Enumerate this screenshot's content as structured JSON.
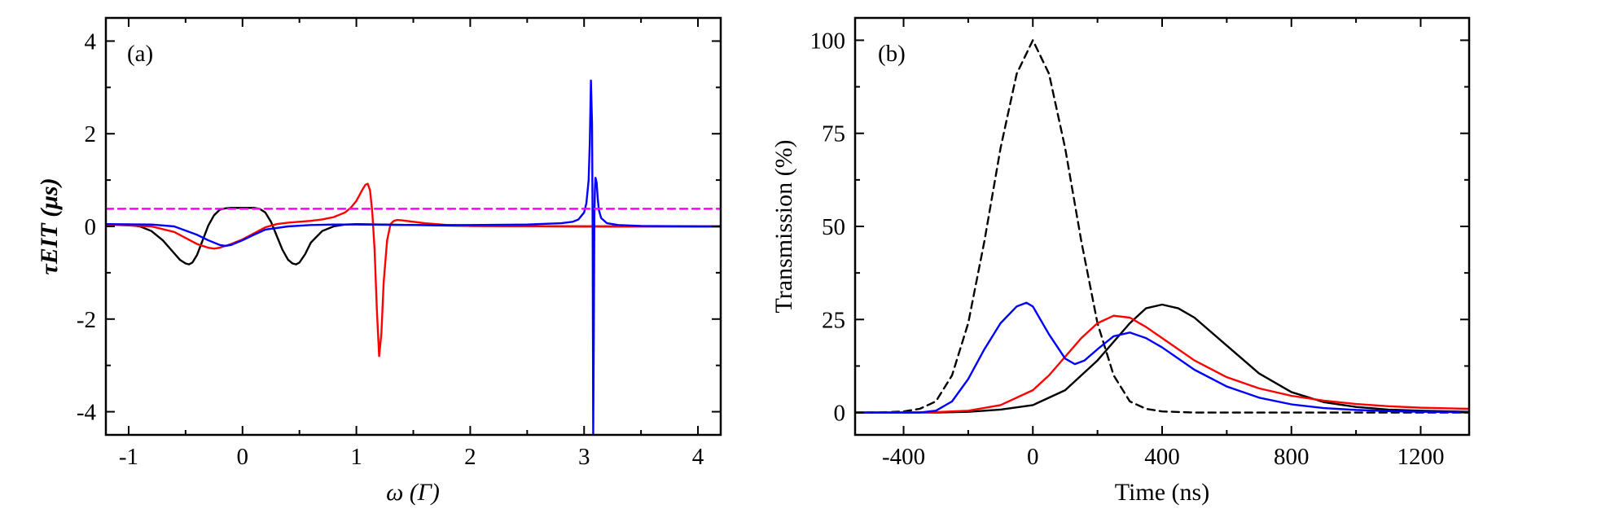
{
  "chart_data": [
    {
      "type": "line",
      "panel_label": "(a)",
      "xlabel": "ω (Γ)",
      "ylabel": "τEIT (μs)",
      "xlim": [
        -1.2,
        4.2
      ],
      "ylim": [
        -4.5,
        4.5
      ],
      "xticks": [
        -1,
        0,
        1,
        2,
        3,
        4
      ],
      "yticks": [
        -4,
        -2,
        0,
        2,
        4
      ],
      "xtick_labels": [
        "-1",
        "0",
        "1",
        "2",
        "3",
        "4"
      ],
      "ytick_labels": [
        "-4",
        "-2",
        "0",
        "2",
        "4"
      ],
      "grid": false,
      "series": [
        {
          "color": "#000000",
          "style": "solid",
          "x": [
            -1.2,
            -1.0,
            -0.9,
            -0.8,
            -0.7,
            -0.6,
            -0.55,
            -0.5,
            -0.47,
            -0.44,
            -0.4,
            -0.35,
            -0.3,
            -0.25,
            -0.2,
            -0.15,
            -0.1,
            -0.05,
            0.0,
            0.05,
            0.1,
            0.15,
            0.2,
            0.25,
            0.3,
            0.35,
            0.4,
            0.44,
            0.47,
            0.5,
            0.55,
            0.6,
            0.7,
            0.8,
            0.9,
            1.0,
            1.5,
            2.0,
            3.0,
            4.2
          ],
          "y": [
            0.05,
            0.03,
            0.0,
            -0.1,
            -0.3,
            -0.58,
            -0.72,
            -0.8,
            -0.82,
            -0.78,
            -0.62,
            -0.3,
            0.02,
            0.24,
            0.36,
            0.39,
            0.4,
            0.4,
            0.4,
            0.4,
            0.4,
            0.38,
            0.3,
            0.1,
            -0.2,
            -0.5,
            -0.72,
            -0.8,
            -0.82,
            -0.78,
            -0.6,
            -0.35,
            -0.1,
            0.0,
            0.04,
            0.05,
            0.03,
            0.01,
            0.0,
            0.0
          ]
        },
        {
          "color": "#ff0000",
          "style": "solid",
          "x": [
            -1.2,
            -0.8,
            -0.6,
            -0.5,
            -0.4,
            -0.3,
            -0.25,
            -0.2,
            -0.1,
            0.0,
            0.1,
            0.2,
            0.3,
            0.4,
            0.5,
            0.6,
            0.7,
            0.8,
            0.9,
            0.95,
            1.0,
            1.05,
            1.08,
            1.1,
            1.12,
            1.14,
            1.16,
            1.18,
            1.2,
            1.22,
            1.24,
            1.27,
            1.3,
            1.33,
            1.36,
            1.4,
            1.5,
            1.6,
            1.8,
            2.0,
            3.0,
            4.2
          ],
          "y": [
            0.04,
            0.0,
            -0.12,
            -0.25,
            -0.38,
            -0.46,
            -0.48,
            -0.46,
            -0.38,
            -0.28,
            -0.15,
            -0.02,
            0.05,
            0.08,
            0.1,
            0.12,
            0.15,
            0.2,
            0.3,
            0.4,
            0.55,
            0.78,
            0.9,
            0.92,
            0.78,
            0.3,
            -0.5,
            -1.8,
            -2.8,
            -2.3,
            -1.2,
            -0.3,
            0.05,
            0.12,
            0.14,
            0.13,
            0.1,
            0.07,
            0.03,
            0.01,
            0.0,
            0.0
          ]
        },
        {
          "color": "#0000ff",
          "style": "solid",
          "x": [
            -1.2,
            -0.8,
            -0.6,
            -0.4,
            -0.3,
            -0.2,
            -0.15,
            -0.1,
            0.0,
            0.1,
            0.2,
            0.4,
            0.6,
            0.8,
            1.0,
            1.5,
            2.0,
            2.5,
            2.8,
            2.9,
            2.95,
            3.0,
            3.02,
            3.04,
            3.05,
            3.06,
            3.07,
            3.075,
            3.08,
            3.085,
            3.09,
            3.095,
            3.1,
            3.11,
            3.12,
            3.13,
            3.15,
            3.2,
            3.3,
            3.5,
            4.0,
            4.2
          ],
          "y": [
            0.05,
            0.04,
            0.0,
            -0.18,
            -0.3,
            -0.4,
            -0.42,
            -0.4,
            -0.3,
            -0.18,
            -0.07,
            0.0,
            0.03,
            0.04,
            0.04,
            0.03,
            0.03,
            0.04,
            0.07,
            0.1,
            0.15,
            0.3,
            0.5,
            1.0,
            1.8,
            3.15,
            2.2,
            0.0,
            -4.5,
            -2.5,
            0.2,
            0.8,
            1.05,
            0.95,
            0.6,
            0.35,
            0.18,
            0.07,
            0.03,
            0.01,
            0.0,
            0.0
          ]
        },
        {
          "color": "#ff00ff",
          "style": "dashed",
          "x": [
            -1.2,
            4.2
          ],
          "y": [
            0.38,
            0.38
          ]
        }
      ]
    },
    {
      "type": "line",
      "panel_label": "(b)",
      "xlabel": "Time (ns)",
      "ylabel": "Transmission (%)",
      "xlim": [
        -550,
        1350
      ],
      "ylim": [
        -6,
        106
      ],
      "xticks": [
        -400,
        0,
        400,
        800,
        1200
      ],
      "yticks": [
        0,
        25,
        50,
        75,
        100
      ],
      "xtick_labels": [
        "-400",
        "0",
        "400",
        "800",
        "1200"
      ],
      "ytick_labels": [
        "0",
        "25",
        "50",
        "75",
        "100"
      ],
      "grid": false,
      "series": [
        {
          "color": "#000000",
          "style": "dashed",
          "x": [
            -550,
            -450,
            -400,
            -350,
            -300,
            -250,
            -200,
            -150,
            -100,
            -50,
            0,
            50,
            100,
            150,
            200,
            250,
            300,
            350,
            400,
            500,
            600,
            800,
            1000,
            1350
          ],
          "y": [
            0,
            0.1,
            0.3,
            1.0,
            3.0,
            10.0,
            24.0,
            46.0,
            71.0,
            91.0,
            100.0,
            91.0,
            71.0,
            46.0,
            24.0,
            10.0,
            3.0,
            1.0,
            0.3,
            0.0,
            0.0,
            0.0,
            0.0,
            0.0
          ]
        },
        {
          "color": "#000000",
          "style": "solid",
          "x": [
            -550,
            -300,
            -200,
            -100,
            0,
            100,
            200,
            300,
            350,
            400,
            450,
            500,
            600,
            700,
            800,
            900,
            1000,
            1100,
            1200,
            1350
          ],
          "y": [
            0,
            0.0,
            0.2,
            0.8,
            2.0,
            6.0,
            14.0,
            24.0,
            28.0,
            29.0,
            28.0,
            25.5,
            18.0,
            10.5,
            5.5,
            2.8,
            1.5,
            0.8,
            0.5,
            0.2
          ]
        },
        {
          "color": "#ff0000",
          "style": "solid",
          "x": [
            -550,
            -300,
            -200,
            -100,
            0,
            50,
            100,
            150,
            200,
            250,
            300,
            350,
            400,
            500,
            600,
            700,
            800,
            900,
            1000,
            1100,
            1200,
            1350
          ],
          "y": [
            0,
            0.1,
            0.5,
            2.0,
            6.0,
            10.0,
            15.0,
            20.0,
            24.0,
            26.0,
            25.5,
            23.0,
            20.0,
            14.0,
            9.5,
            6.5,
            4.5,
            3.2,
            2.3,
            1.7,
            1.3,
            1.0
          ]
        },
        {
          "color": "#0000ff",
          "style": "solid",
          "x": [
            -550,
            -350,
            -300,
            -250,
            -200,
            -150,
            -100,
            -50,
            -20,
            0,
            50,
            100,
            130,
            160,
            200,
            250,
            300,
            350,
            400,
            500,
            600,
            700,
            800,
            900,
            1000,
            1100,
            1200,
            1350
          ],
          "y": [
            0,
            0.0,
            0.5,
            3.0,
            9.0,
            17.0,
            24.0,
            28.5,
            29.5,
            28.5,
            21.0,
            14.5,
            13.0,
            14.0,
            17.0,
            20.5,
            21.5,
            20.0,
            17.5,
            11.5,
            7.0,
            4.0,
            2.2,
            1.2,
            0.7,
            0.4,
            0.2,
            0.1
          ]
        }
      ]
    }
  ]
}
